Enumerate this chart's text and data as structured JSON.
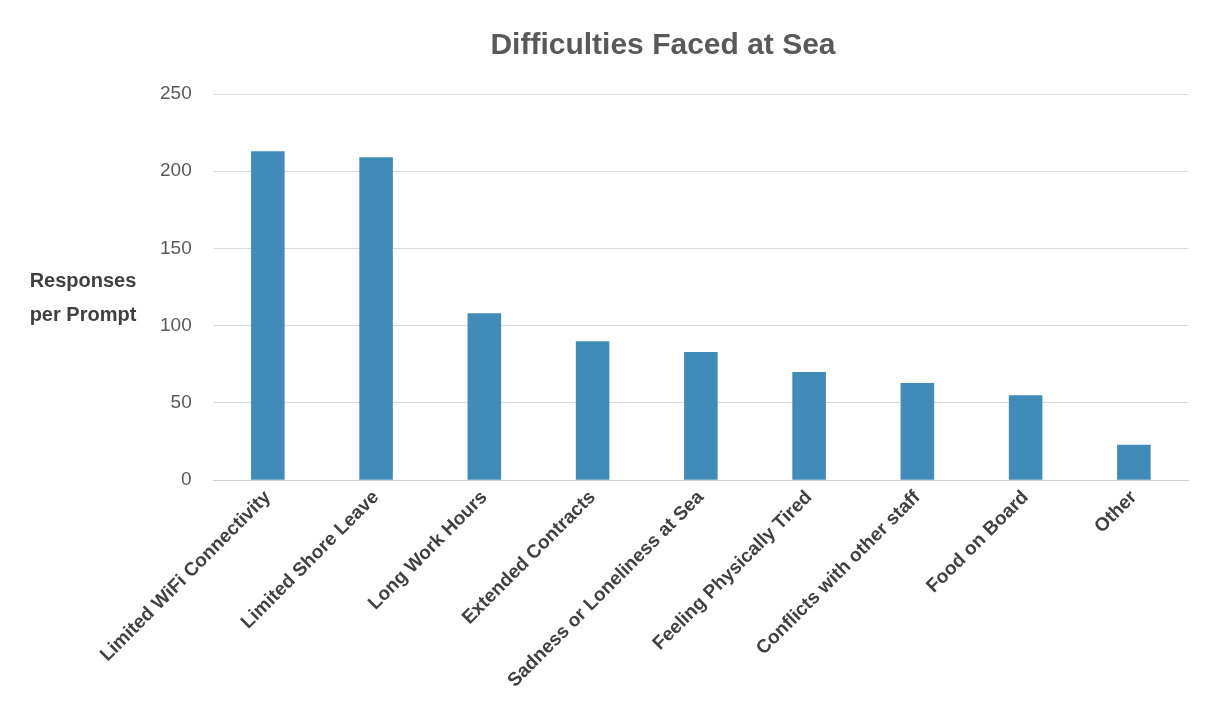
{
  "chart_data": {
    "type": "bar",
    "title": "Difficulties Faced at Sea",
    "ylabel": "Responses per Prompt",
    "categories": [
      "Limited WiFi Connectivity",
      "Limited Shore Leave",
      "Long Work Hours",
      "Extended Contracts",
      "Sadness or Loneliness at Sea",
      "Feeling Physically Tired",
      "Conflicts with other staff",
      "Food on Board",
      "Other"
    ],
    "values": [
      213,
      209,
      108,
      90,
      83,
      70,
      63,
      55,
      23
    ],
    "color": "#408bb7",
    "ylim": [
      0,
      250
    ],
    "yticks": [
      0,
      50,
      100,
      150,
      200,
      250
    ],
    "grid": "y",
    "legend": false
  }
}
